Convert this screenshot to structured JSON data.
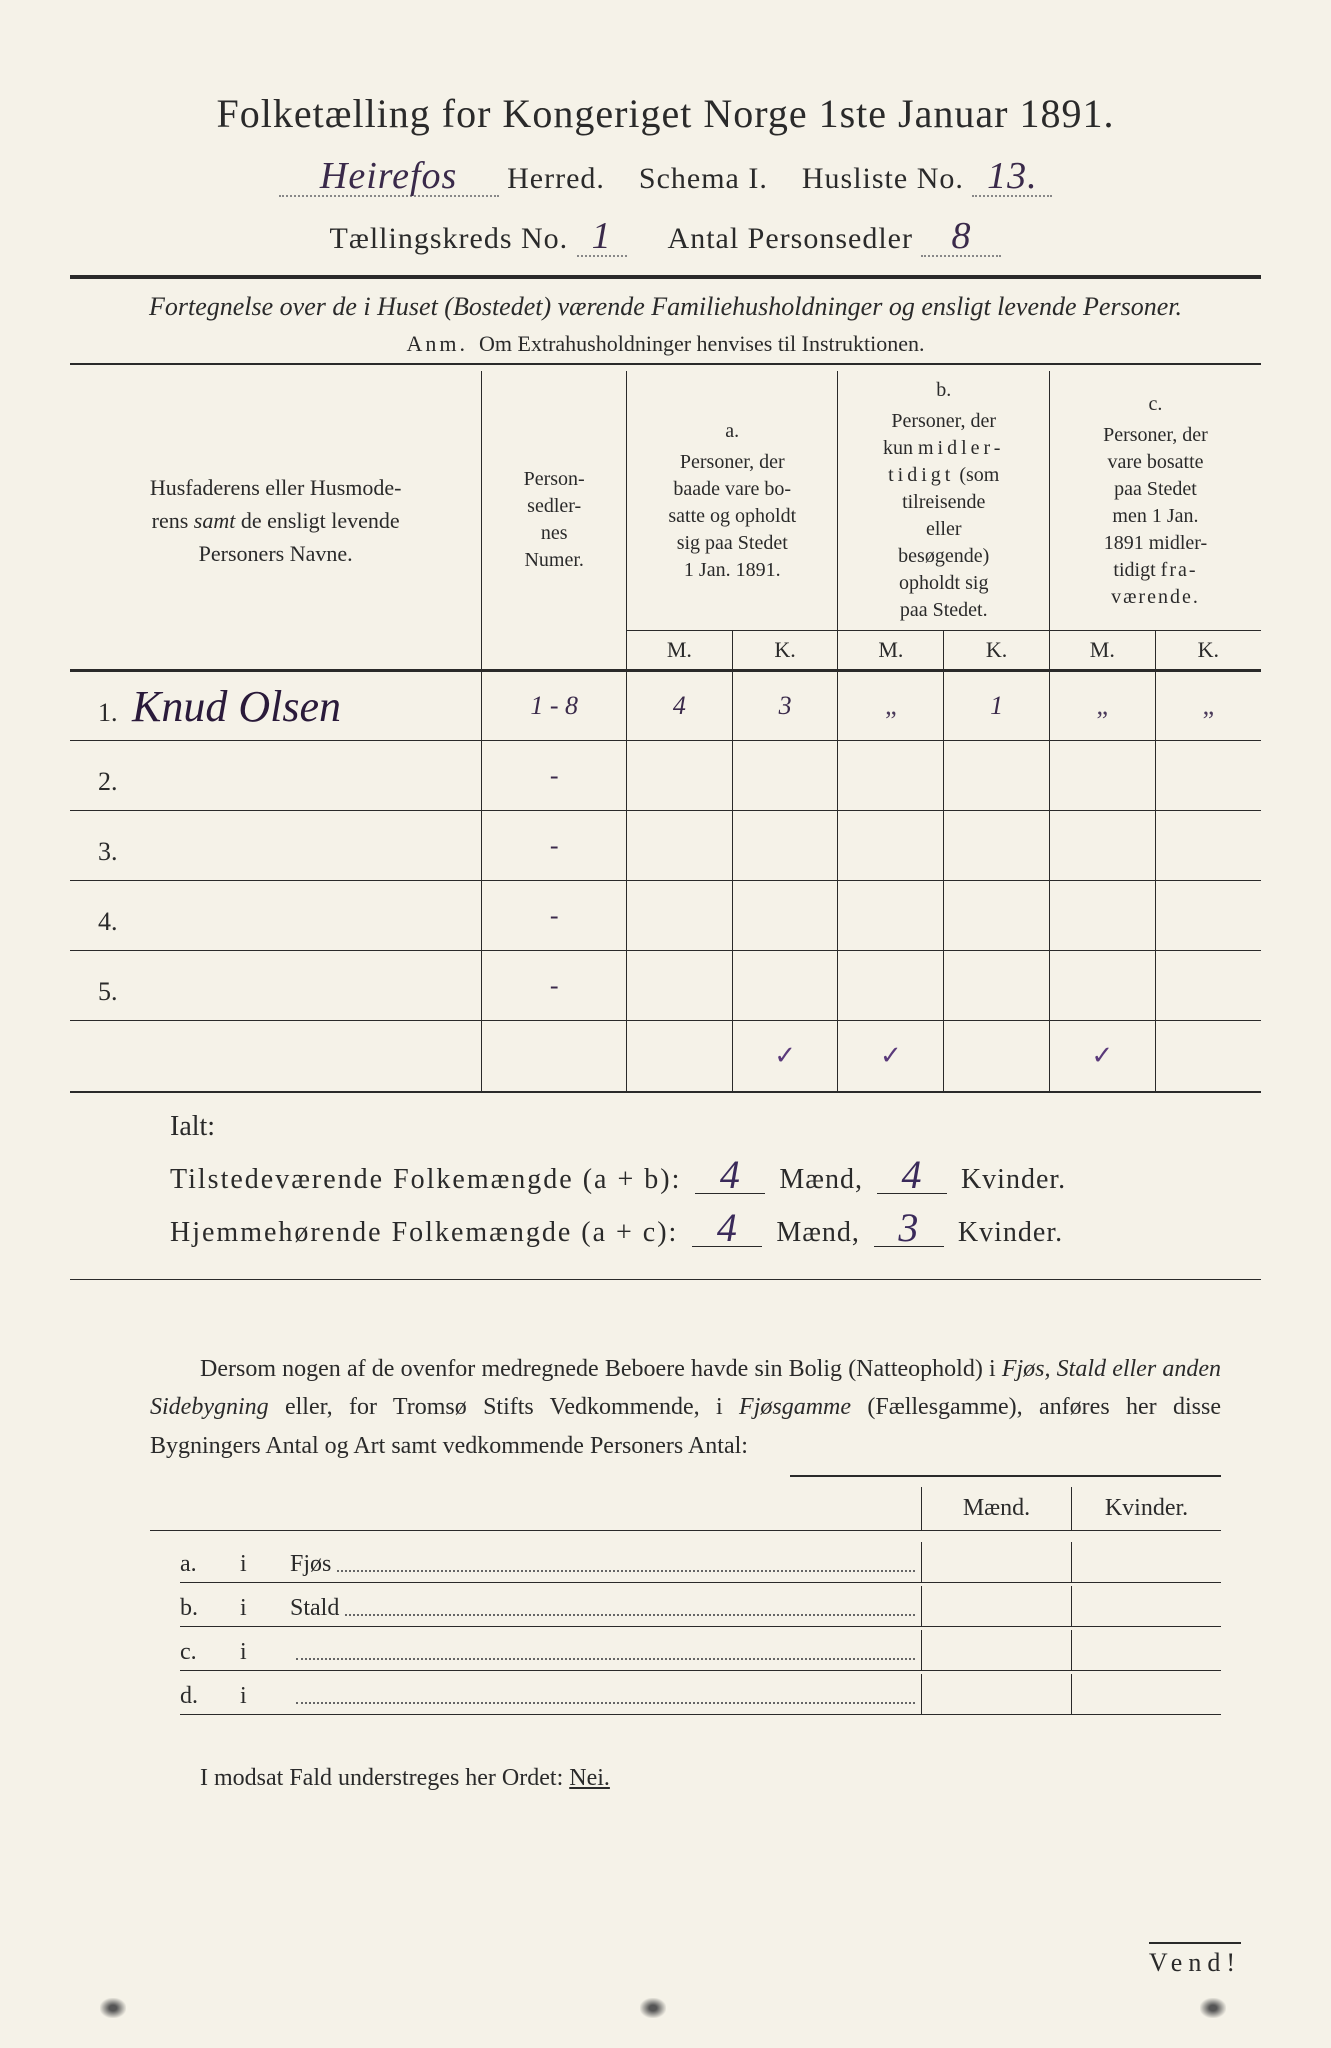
{
  "title": "Folketælling for Kongeriget Norge 1ste Januar 1891.",
  "header": {
    "herred_value": "Heirefos",
    "herred_label": "Herred.",
    "schema_label": "Schema I.",
    "husliste_label": "Husliste No.",
    "husliste_value": "13.",
    "kreds_label": "Tællingskreds No.",
    "kreds_value": "1",
    "antal_label": "Antal Personsedler",
    "antal_value": "8"
  },
  "subtitle": "Fortegnelse over de i Huset (Bostedet) værende Familiehusholdninger og ensligt levende Personer.",
  "anm_lead": "Anm.",
  "anm_text": "Om Extrahusholdninger henvises til Instruktionen.",
  "columns": {
    "name": "Husfaderens eller Husmoderens samt de ensligt levende Personers Navne.",
    "num": "Person-sedler-nes Numer.",
    "a": "Personer, der baade vare bosatte og opholdt sig paa Stedet 1 Jan. 1891.",
    "b": "Personer, der kun midlertidigt (som tilreisende eller besøgende) opholdt sig paa Stedet.",
    "c": "Personer, der vare bosatte paa Stedet men 1 Jan. 1891 midlertidigt fraværende.",
    "a_tag": "a.",
    "b_tag": "b.",
    "c_tag": "c.",
    "M": "M.",
    "K": "K."
  },
  "rows": [
    {
      "n": "1.",
      "name": "Knud Olsen",
      "num": "1 - 8",
      "aM": "4",
      "aK": "3",
      "bM": "„",
      "bK": "1",
      "cM": "„",
      "cK": "„"
    },
    {
      "n": "2.",
      "name": "",
      "num": "-",
      "aM": "",
      "aK": "",
      "bM": "",
      "bK": "",
      "cM": "",
      "cK": ""
    },
    {
      "n": "3.",
      "name": "",
      "num": "-",
      "aM": "",
      "aK": "",
      "bM": "",
      "bK": "",
      "cM": "",
      "cK": ""
    },
    {
      "n": "4.",
      "name": "",
      "num": "-",
      "aM": "",
      "aK": "",
      "bM": "",
      "bK": "",
      "cM": "",
      "cK": ""
    },
    {
      "n": "5.",
      "name": "",
      "num": "-",
      "aM": "",
      "aK": "",
      "bM": "",
      "bK": "",
      "cM": "",
      "cK": ""
    }
  ],
  "checks": {
    "aK": "✓",
    "bM": "✓",
    "bK": "",
    "cM": "✓"
  },
  "totals": {
    "ialt": "Ialt:",
    "line1_label": "Tilstedeværende Folkemængde (a + b):",
    "line2_label": "Hjemmehørende Folkemængde (a + c):",
    "maend": "Mænd,",
    "kvinder": "Kvinder.",
    "l1_m": "4",
    "l1_k": "4",
    "l2_m": "4",
    "l2_k": "3"
  },
  "para": {
    "t1": "Dersom nogen af de ovenfor medregnede Beboere havde sin Bolig (Natteophold) i ",
    "i1": "Fjøs, Stald eller anden Sidebygning",
    "t2": " eller, for Tromsø Stifts Vedkommende, i ",
    "i2": "Fjøsgamme",
    "t3": " (Fællesgamme), anføres her disse Bygningers Antal og Art samt vedkommende Personers Antal:"
  },
  "mk": {
    "maend": "Mænd.",
    "kvinder": "Kvinder."
  },
  "abcd": [
    {
      "lbl": "a.",
      "i": "i",
      "txt": "Fjøs"
    },
    {
      "lbl": "b.",
      "i": "i",
      "txt": "Stald"
    },
    {
      "lbl": "c.",
      "i": "i",
      "txt": ""
    },
    {
      "lbl": "d.",
      "i": "i",
      "txt": ""
    }
  ],
  "nei_line": {
    "pre": "I modsat Fald understreges her Ordet: ",
    "nei": "Nei."
  },
  "vend": "Vend!",
  "colors": {
    "paper": "#f5f2e8",
    "ink": "#2a2a2a",
    "handwriting": "#3a2a4a"
  }
}
